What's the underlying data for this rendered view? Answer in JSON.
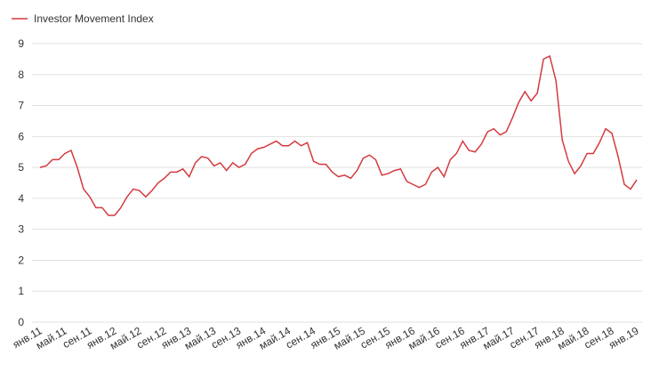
{
  "chart_data": {
    "type": "line",
    "categories": [
      "янв.11",
      null,
      null,
      null,
      "май.11",
      null,
      null,
      null,
      "сен.11",
      null,
      null,
      null,
      "янв.12",
      null,
      null,
      null,
      "май.12",
      null,
      null,
      null,
      "сен.12",
      null,
      null,
      null,
      "янв.13",
      null,
      null,
      null,
      "май.13",
      null,
      null,
      null,
      "сен.13",
      null,
      null,
      null,
      "янв.14",
      null,
      null,
      null,
      "май.14",
      null,
      null,
      null,
      "сен.14",
      null,
      null,
      null,
      "янв.15",
      null,
      null,
      null,
      "май.15",
      null,
      null,
      null,
      "сен.15",
      null,
      null,
      null,
      "янв.16",
      null,
      null,
      null,
      "май.16",
      null,
      null,
      null,
      "сен.16",
      null,
      null,
      null,
      "янв.17",
      null,
      null,
      null,
      "май.17",
      null,
      null,
      null,
      "сен.17",
      null,
      null,
      null,
      "янв.18",
      null,
      null,
      null,
      "май.18",
      null,
      null,
      null,
      "сен.18",
      null,
      null,
      null,
      "янв.19"
    ],
    "series": [
      {
        "name": "Investor Movement Index",
        "color": "#d43a3f",
        "values": [
          5.0,
          5.05,
          5.25,
          5.25,
          5.45,
          5.55,
          5.0,
          4.3,
          4.05,
          3.7,
          3.7,
          3.45,
          3.45,
          3.7,
          4.05,
          4.3,
          4.25,
          4.05,
          4.25,
          4.5,
          4.65,
          4.85,
          4.85,
          4.95,
          4.7,
          5.15,
          5.35,
          5.3,
          5.05,
          5.15,
          4.9,
          5.15,
          5.0,
          5.1,
          5.45,
          5.6,
          5.65,
          5.75,
          5.85,
          5.7,
          5.7,
          5.85,
          5.7,
          5.8,
          5.2,
          5.1,
          5.1,
          4.85,
          4.7,
          4.75,
          4.65,
          4.9,
          5.3,
          5.4,
          5.25,
          4.75,
          4.8,
          4.9,
          4.95,
          4.55,
          4.45,
          4.35,
          4.45,
          4.85,
          5.0,
          4.7,
          5.25,
          5.45,
          5.85,
          5.55,
          5.5,
          5.75,
          6.15,
          6.25,
          6.05,
          6.15,
          6.6,
          7.1,
          7.45,
          7.15,
          7.4,
          8.5,
          8.6,
          7.8,
          5.9,
          5.2,
          4.8,
          5.05,
          5.45,
          5.45,
          5.8,
          6.25,
          6.1,
          5.35,
          4.45,
          4.3,
          4.6
        ]
      }
    ],
    "ylim": [
      0,
      9
    ],
    "yticks": [
      0,
      1,
      2,
      3,
      4,
      5,
      6,
      7,
      8,
      9
    ],
    "grid": true,
    "legend": "top-left"
  }
}
